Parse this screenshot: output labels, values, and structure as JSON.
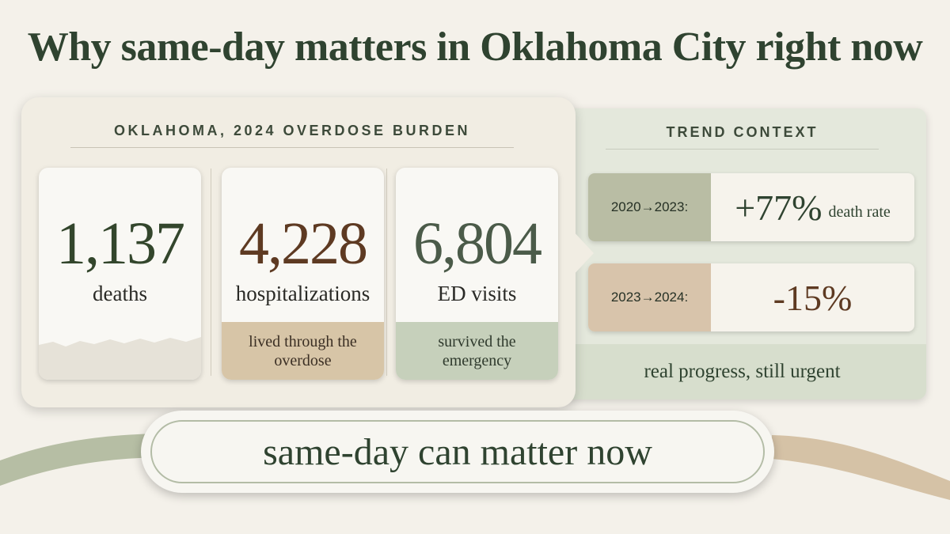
{
  "title": "Why same-day matters in Oklahoma City right now",
  "burden": {
    "heading": "OKLAHOMA, 2024 OVERDOSE BURDEN",
    "cards": [
      {
        "value": "1,137",
        "label": "deaths",
        "note": ""
      },
      {
        "value": "4,228",
        "label": "hospitalizations",
        "note": "lived through the overdose"
      },
      {
        "value": "6,804",
        "label": "ED visits",
        "note": "survived the emergency"
      }
    ]
  },
  "trend": {
    "heading": "TREND CONTEXT",
    "rows": [
      {
        "period": "2020→2023:",
        "value": "+77%",
        "suffix": "death rate"
      },
      {
        "period": "2023→2024:",
        "value": "-15%",
        "suffix": ""
      }
    ],
    "footer": "real progress, still urgent"
  },
  "cta": {
    "text": "same-day can matter now"
  },
  "colors": {
    "dark_green": "#2f4330",
    "brown": "#5e3a22",
    "sage": "#c6d0bb",
    "tan": "#d7c5a7",
    "cream": "#f4f1ea"
  }
}
